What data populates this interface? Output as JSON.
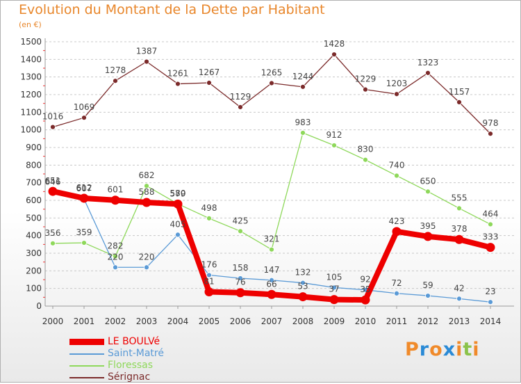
{
  "title": "Evolution du Montant de la Dette par Habitant",
  "unit_label": "(en €)",
  "chart_data": {
    "type": "line",
    "title": "Evolution du Montant de la Dette par Habitant",
    "ylabel": "(en €)",
    "xlabel": "",
    "ylim": [
      0,
      1500
    ],
    "yticks": [
      0,
      100,
      200,
      300,
      400,
      500,
      600,
      700,
      800,
      900,
      1000,
      1100,
      1200,
      1300,
      1400,
      1500
    ],
    "grid": "horizontal",
    "legend_position": "bottom-left",
    "x": [
      "2000",
      "2001",
      "2002",
      "2003",
      "2004",
      "2005",
      "2006",
      "2007",
      "2008",
      "2009",
      "2010",
      "2011",
      "2012",
      "2013",
      "2014"
    ],
    "series": [
      {
        "name": "Sérignac",
        "color": "#7b2a2a",
        "values": [
          1016,
          1069,
          1278,
          1387,
          1261,
          1267,
          1129,
          1265,
          1244,
          1428,
          1229,
          1203,
          1323,
          1157,
          978
        ]
      },
      {
        "name": "Floressas",
        "color": "#8ed85a",
        "values": [
          356,
          359,
          282,
          682,
          580,
          498,
          425,
          321,
          983,
          912,
          830,
          740,
          650,
          555,
          464
        ]
      },
      {
        "name": "Saint-Matré",
        "color": "#5a9ad6",
        "values": [
          646,
          607,
          220,
          220,
          405,
          176,
          158,
          147,
          132,
          105,
          92,
          72,
          59,
          42,
          23
        ]
      },
      {
        "name": "LE BOULVé",
        "color": "#ee0000",
        "values": [
          651,
          612,
          601,
          588,
          579,
          81,
          76,
          66,
          53,
          37,
          35,
          423,
          395,
          378,
          333
        ]
      }
    ]
  },
  "legend": [
    {
      "label": "LE BOULVé",
      "color": "#ee0000"
    },
    {
      "label": "Saint-Matré",
      "color": "#5a9ad6"
    },
    {
      "label": "Floressas",
      "color": "#8ed85a"
    },
    {
      "label": "Sérignac",
      "color": "#7b2a2a"
    }
  ],
  "logo": {
    "letters": [
      "P",
      "r",
      "o",
      "x",
      "i",
      "t",
      "i"
    ],
    "colors": [
      "#f08a2a",
      "#2a8ad6",
      "#f08a2a",
      "#2a8ad6",
      "#f08a2a",
      "#8bc34a",
      "#f08a2a"
    ]
  }
}
